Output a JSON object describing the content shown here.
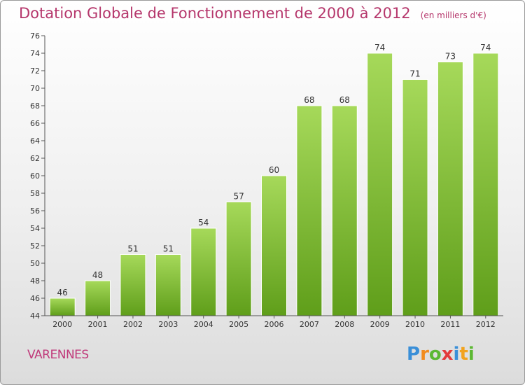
{
  "chart_data": {
    "type": "bar",
    "title": "Dotation Globale de Fonctionnement de 2000 à 2012",
    "subtitle": "(en milliers d'€)",
    "categories": [
      "2000",
      "2001",
      "2002",
      "2003",
      "2004",
      "2005",
      "2006",
      "2007",
      "2008",
      "2009",
      "2010",
      "2011",
      "2012"
    ],
    "values": [
      46,
      48,
      51,
      51,
      54,
      57,
      60,
      68,
      68,
      74,
      71,
      73,
      74
    ],
    "ylim": [
      44,
      76
    ],
    "yticks": [
      44,
      46,
      48,
      50,
      52,
      54,
      56,
      58,
      60,
      62,
      64,
      66,
      68,
      70,
      72,
      74,
      76
    ],
    "grid": false,
    "legend": "none",
    "bar_color": "#7fbf2f"
  },
  "footer": {
    "commune": "VARENNES",
    "logo_letters": [
      "P",
      "r",
      "o",
      "x",
      "i",
      "t",
      "i"
    ],
    "logo_colors": [
      "#3a8fd8",
      "#f28c1e",
      "#5cb833",
      "#e33b3b",
      "#3a8fd8",
      "#f2a31e",
      "#5cb833"
    ]
  }
}
